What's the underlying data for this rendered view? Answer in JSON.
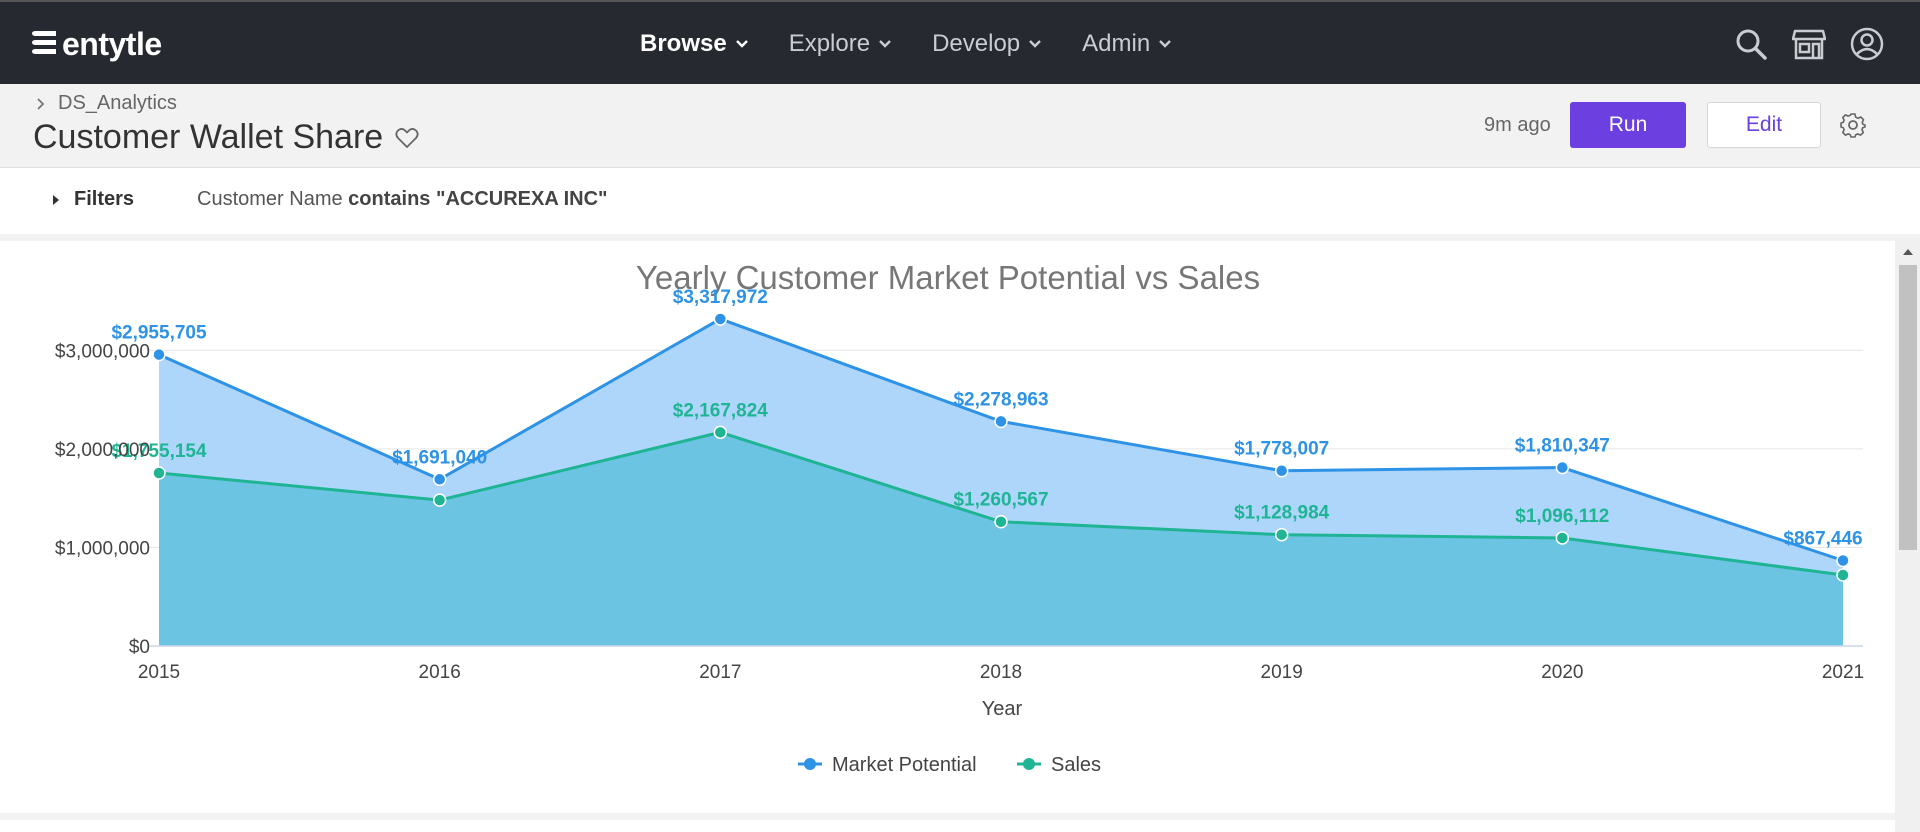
{
  "app": {
    "logo_text": "entytle"
  },
  "nav": {
    "items": [
      {
        "label": "Browse",
        "active": true
      },
      {
        "label": "Explore",
        "active": false
      },
      {
        "label": "Develop",
        "active": false
      },
      {
        "label": "Admin",
        "active": false
      }
    ],
    "icons": [
      "search-icon",
      "store-icon",
      "user-icon"
    ]
  },
  "header": {
    "breadcrumb": "DS_Analytics",
    "title": "Customer Wallet Share",
    "time_ago": "9m ago",
    "run_label": "Run",
    "edit_label": "Edit"
  },
  "filters": {
    "label": "Filters",
    "field": "Customer Name",
    "condition": "contains \"ACCUREXA INC\""
  },
  "colors": {
    "accent": "#6b3fe0",
    "market_potential": "#2e93e6",
    "market_potential_fill": "#a9d4fa",
    "sales": "#1fb494",
    "sales_fill": "#6cc4e3"
  },
  "chart_data": {
    "type": "area",
    "title": "Yearly Customer Market Potential vs Sales",
    "xlabel": "Year",
    "ylabel": "",
    "categories": [
      "2015",
      "2016",
      "2017",
      "2018",
      "2019",
      "2020",
      "2021"
    ],
    "ylim": [
      0,
      3500000
    ],
    "yticks": [
      0,
      1000000,
      2000000,
      3000000
    ],
    "ytick_labels": [
      "$0",
      "$1,000,000",
      "$2,000,000",
      "$3,000,000"
    ],
    "grid": true,
    "legend_position": "bottom",
    "series": [
      {
        "name": "Market Potential",
        "values": [
          2955705,
          1691040,
          3317972,
          2278963,
          1778007,
          1810347,
          867446
        ],
        "labels": [
          "$2,955,705",
          "$1,691,040",
          "$3,317,972",
          "$2,278,963",
          "$1,778,007",
          "$1,810,347",
          "$867,446"
        ]
      },
      {
        "name": "Sales",
        "values": [
          1755154,
          1480000,
          2167824,
          1260567,
          1128984,
          1096112,
          720000
        ],
        "labels": [
          "$1,755,154",
          "",
          "$2,167,824",
          "$1,260,567",
          "$1,128,984",
          "$1,096,112",
          ""
        ]
      }
    ]
  }
}
